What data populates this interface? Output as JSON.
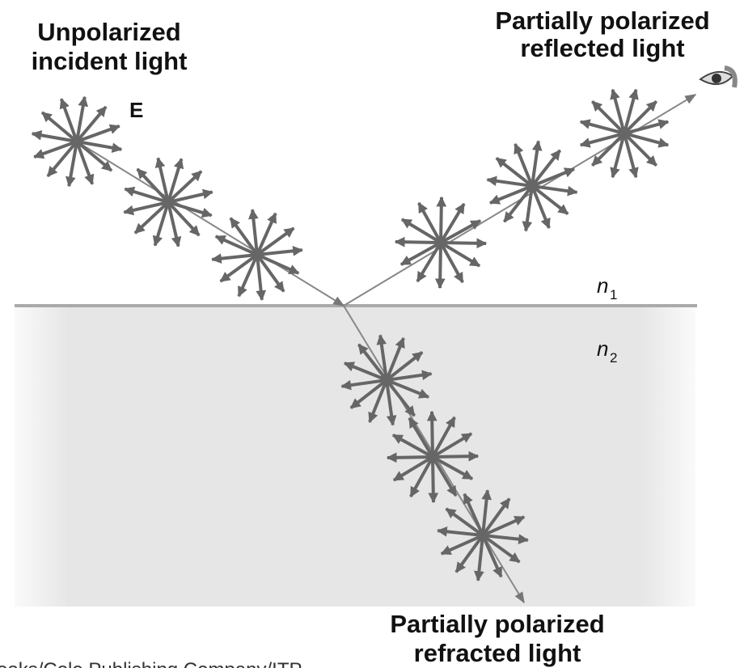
{
  "labels": {
    "incident": [
      "Unpolarized",
      "incident light"
    ],
    "field": "E",
    "reflected": [
      "Partially polarized",
      "reflected light"
    ],
    "refracted": [
      "Partially polarized",
      "refracted light"
    ],
    "medium1": {
      "symbol": "n",
      "subscript": "1"
    },
    "medium2": {
      "symbol": "n",
      "subscript": "2"
    },
    "credit": "ooks/Cole Publishing Company/ITP"
  }
}
